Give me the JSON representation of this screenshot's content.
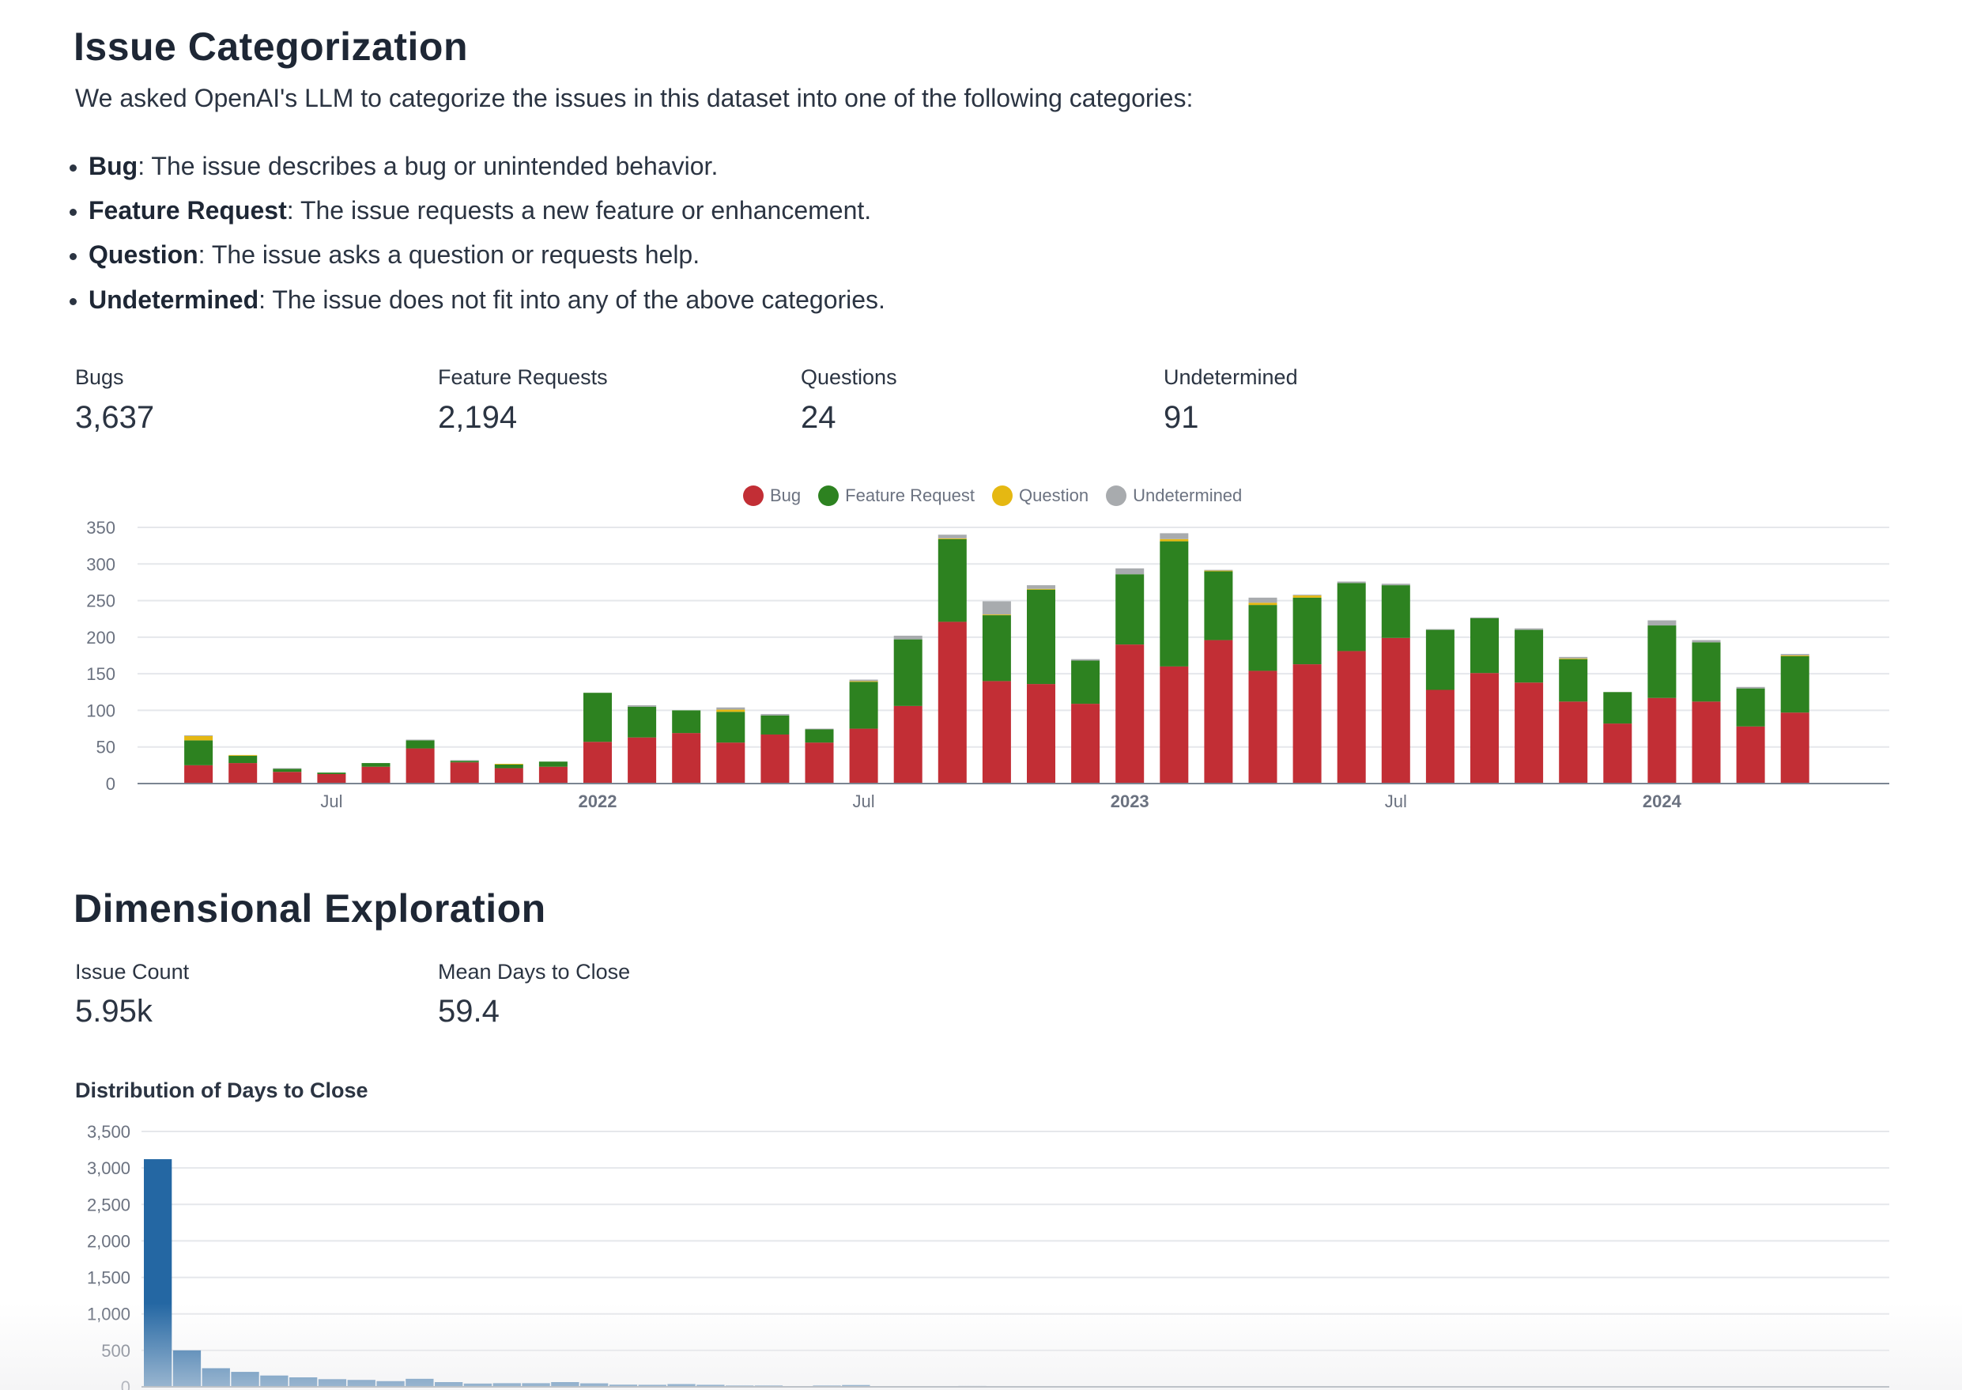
{
  "section1": {
    "title": "Issue Categorization",
    "intro": "We asked OpenAI's LLM to categorize the issues in this dataset into one of the following categories:",
    "bullets": [
      {
        "term": "Bug",
        "desc": ": The issue describes a bug or unintended behavior."
      },
      {
        "term": "Feature Request",
        "desc": ": The issue requests a new feature or enhancement."
      },
      {
        "term": "Question",
        "desc": ": The issue asks a question or requests help."
      },
      {
        "term": "Undetermined",
        "desc": ": The issue does not fit into any of the above categories."
      }
    ],
    "metrics": [
      {
        "label": "Bugs",
        "value": "3,637"
      },
      {
        "label": "Feature Requests",
        "value": "2,194"
      },
      {
        "label": "Questions",
        "value": "24"
      },
      {
        "label": "Undetermined",
        "value": "91"
      }
    ]
  },
  "section2": {
    "title": "Dimensional Exploration",
    "metrics": [
      {
        "label": "Issue Count",
        "value": "5.95k"
      },
      {
        "label": "Mean Days to Close",
        "value": "59.4"
      }
    ],
    "chart_title": "Distribution of Days to Close"
  },
  "colors": {
    "bug": "#c22e35",
    "feature_request": "#2d8220",
    "question": "#e5b812",
    "undetermined": "#a8abae",
    "histogram": "#2467a3"
  },
  "chart_data": [
    {
      "type": "bar",
      "stacked": true,
      "legend_position": "top",
      "grid": true,
      "ylim": [
        0,
        350
      ],
      "yticks": [
        "0",
        "50",
        "100",
        "150",
        "200",
        "250",
        "300",
        "350"
      ],
      "xtick_labels": [
        {
          "label": "Jul",
          "at": "2021-07",
          "bold": false
        },
        {
          "label": "2022",
          "at": "2022-01",
          "bold": true
        },
        {
          "label": "Jul",
          "at": "2022-07",
          "bold": false
        },
        {
          "label": "2023",
          "at": "2023-01",
          "bold": true
        },
        {
          "label": "Jul",
          "at": "2023-07",
          "bold": false
        },
        {
          "label": "2024",
          "at": "2024-01",
          "bold": true
        }
      ],
      "categories": [
        "2021-03",
        "2021-04",
        "2021-05",
        "2021-06",
        "2021-07",
        "2021-08",
        "2021-09",
        "2021-10",
        "2021-11",
        "2021-12",
        "2022-01",
        "2022-02",
        "2022-03",
        "2022-04",
        "2022-05",
        "2022-06",
        "2022-07",
        "2022-08",
        "2022-09",
        "2022-10",
        "2022-11",
        "2022-12",
        "2023-01",
        "2023-02",
        "2023-03",
        "2023-04",
        "2023-05",
        "2023-06",
        "2023-07",
        "2023-08",
        "2023-09",
        "2023-10",
        "2023-11",
        "2023-12",
        "2024-01",
        "2024-02",
        "2024-03",
        "2024-04"
      ],
      "series": [
        {
          "name": "Bug",
          "values": [
            1,
            25,
            28,
            16,
            13,
            23,
            48,
            29,
            21,
            23,
            57,
            63,
            69,
            56,
            67,
            56,
            75,
            106,
            221,
            140,
            136,
            109,
            190,
            160,
            196,
            154,
            163,
            181,
            199,
            128,
            151,
            138,
            112,
            82,
            117,
            112,
            78,
            97
          ]
        },
        {
          "name": "Feature Request",
          "values": [
            0,
            34,
            10,
            4,
            2,
            5,
            11,
            2,
            5,
            7,
            67,
            42,
            31,
            42,
            26,
            18,
            64,
            91,
            113,
            90,
            129,
            59,
            96,
            171,
            94,
            90,
            91,
            93,
            72,
            82,
            75,
            72,
            58,
            43,
            99,
            81,
            52,
            77
          ]
        },
        {
          "name": "Question",
          "values": [
            0,
            6,
            1,
            0,
            0,
            0,
            0,
            0,
            1,
            0,
            0,
            0,
            0,
            3,
            0,
            0,
            1,
            0,
            1,
            1,
            1,
            0,
            0,
            3,
            1,
            3,
            3,
            0,
            0,
            0,
            0,
            0,
            1,
            0,
            0,
            0,
            0,
            1
          ]
        },
        {
          "name": "Undetermined",
          "values": [
            0,
            1,
            0,
            1,
            0,
            0,
            1,
            1,
            0,
            0,
            0,
            2,
            0,
            3,
            2,
            1,
            2,
            5,
            5,
            18,
            5,
            2,
            8,
            8,
            1,
            7,
            1,
            2,
            2,
            1,
            1,
            2,
            2,
            0,
            7,
            3,
            2,
            2
          ]
        }
      ]
    },
    {
      "type": "bar",
      "title": "Distribution of Days to Close",
      "grid": true,
      "ylim": [
        0,
        3500
      ],
      "yticks": [
        "0",
        "500",
        "1,000",
        "1,500",
        "2,000",
        "2,500",
        "3,000",
        "3,500"
      ],
      "values": [
        3120,
        500,
        255,
        205,
        155,
        130,
        105,
        95,
        78,
        110,
        65,
        45,
        50,
        50,
        65,
        48,
        30,
        28,
        38,
        28,
        18,
        18,
        8,
        18,
        25,
        8,
        6,
        6,
        12,
        8,
        3,
        3,
        3,
        3,
        3,
        8,
        8,
        2,
        2,
        2,
        2,
        2,
        1,
        1,
        1,
        1,
        1,
        1,
        1,
        1,
        1,
        1,
        1,
        1,
        1,
        1,
        1,
        1,
        1,
        1
      ]
    }
  ]
}
